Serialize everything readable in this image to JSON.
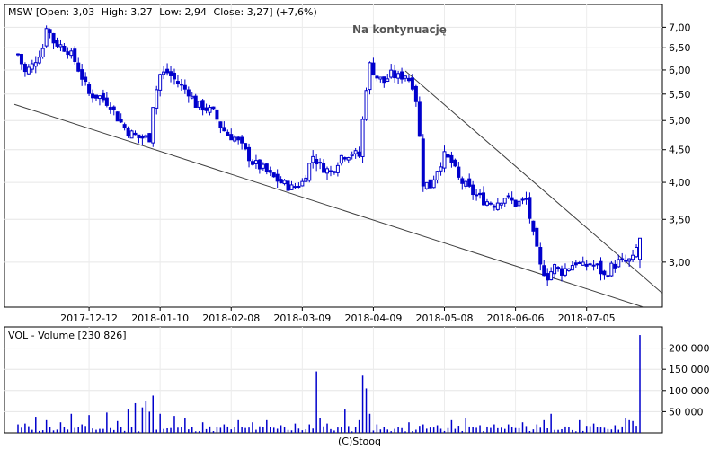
{
  "chart_data": [
    {
      "type": "candlestick",
      "ticker": "MSW",
      "header": {
        "open_label": "Open:",
        "open": "3,03",
        "high_label": "High:",
        "high": "3,27",
        "low_label": "Low:",
        "low": "2,94",
        "close_label": "Close:",
        "close": "3,27",
        "change": "(+7,6%)"
      },
      "annotation": "Na kontynuację",
      "y_scale": "log",
      "ylim": [
        2.55,
        7.6
      ],
      "y_ticks": [
        "7,00",
        "6,50",
        "6,00",
        "5,50",
        "5,00",
        "4,50",
        "4,00",
        "3,50",
        "3,00"
      ],
      "x_ticks": [
        "2017-12-12",
        "2018-01-10",
        "2018-02-08",
        "2018-03-09",
        "2018-04-09",
        "2018-05-08",
        "2018-06-06",
        "2018-07-05"
      ],
      "x_tick_sessions": [
        20,
        40,
        60,
        80,
        100,
        120,
        140,
        160
      ],
      "session_count": 176,
      "series_color": "#0000cc",
      "trendlines": [
        {
          "name": "support",
          "from": {
            "session": -1,
            "value": 5.3
          },
          "to": {
            "session": 176,
            "value": 2.55
          }
        },
        {
          "name": "resistance",
          "from": {
            "session": 109,
            "value": 5.98
          },
          "to": {
            "session": 182,
            "value": 2.66
          }
        }
      ],
      "price_anchors": [
        [
          0,
          6.35
        ],
        [
          2,
          5.95
        ],
        [
          4,
          6.1
        ],
        [
          7,
          6.5
        ],
        [
          8,
          7.05
        ],
        [
          10,
          6.65
        ],
        [
          12,
          6.55
        ],
        [
          14,
          6.45
        ],
        [
          16,
          6.2
        ],
        [
          18,
          5.85
        ],
        [
          20,
          5.5
        ],
        [
          23,
          5.45
        ],
        [
          26,
          5.3
        ],
        [
          28,
          5.05
        ],
        [
          31,
          4.8
        ],
        [
          34,
          4.7
        ],
        [
          37,
          4.7
        ],
        [
          38,
          5.3
        ],
        [
          40,
          5.9
        ],
        [
          42,
          5.95
        ],
        [
          44,
          5.8
        ],
        [
          46,
          5.65
        ],
        [
          48,
          5.55
        ],
        [
          50,
          5.3
        ],
        [
          52,
          5.25
        ],
        [
          55,
          5.15
        ],
        [
          57,
          4.9
        ],
        [
          59,
          4.75
        ],
        [
          61,
          4.7
        ],
        [
          63,
          4.55
        ],
        [
          66,
          4.3
        ],
        [
          69,
          4.2
        ],
        [
          71,
          4.1
        ],
        [
          74,
          4.0
        ],
        [
          77,
          3.92
        ],
        [
          80,
          4.0
        ],
        [
          83,
          4.4
        ],
        [
          85,
          4.25
        ],
        [
          88,
          4.15
        ],
        [
          91,
          4.4
        ],
        [
          94,
          4.45
        ],
        [
          96,
          4.4
        ],
        [
          97,
          5.0
        ],
        [
          98,
          5.65
        ],
        [
          99,
          6.1
        ],
        [
          101,
          5.85
        ],
        [
          103,
          5.75
        ],
        [
          105,
          5.9
        ],
        [
          107,
          5.85
        ],
        [
          109,
          5.9
        ],
        [
          111,
          5.7
        ],
        [
          112,
          5.4
        ],
        [
          113,
          4.7
        ],
        [
          114,
          4.0
        ],
        [
          116,
          3.95
        ],
        [
          118,
          4.2
        ],
        [
          120,
          4.4
        ],
        [
          122,
          4.3
        ],
        [
          124,
          4.05
        ],
        [
          126,
          3.95
        ],
        [
          128,
          3.85
        ],
        [
          131,
          3.75
        ],
        [
          134,
          3.7
        ],
        [
          137,
          3.8
        ],
        [
          140,
          3.7
        ],
        [
          143,
          3.75
        ],
        [
          145,
          3.3
        ],
        [
          147,
          2.95
        ],
        [
          149,
          2.85
        ],
        [
          151,
          2.95
        ],
        [
          153,
          2.9
        ],
        [
          155,
          2.95
        ],
        [
          157,
          3.0
        ],
        [
          159,
          2.95
        ],
        [
          161,
          2.98
        ],
        [
          163,
          2.95
        ],
        [
          165,
          2.85
        ],
        [
          167,
          2.95
        ],
        [
          169,
          3.0
        ],
        [
          171,
          3.0
        ],
        [
          173,
          3.03
        ],
        [
          175,
          3.27
        ]
      ]
    },
    {
      "type": "bar",
      "title": "VOL - Volume",
      "last_value": "[230 826]",
      "series_color": "#0000cc",
      "ylim": [
        0,
        250000
      ],
      "y_ticks": [
        {
          "value": 50000,
          "label": "50 000"
        },
        {
          "value": 100000,
          "label": "100 000"
        },
        {
          "value": 150000,
          "label": "150 000"
        },
        {
          "value": 200000,
          "label": "200 000"
        }
      ],
      "sessions": [
        0,
        2,
        5,
        8,
        12,
        15,
        18,
        20,
        25,
        28,
        31,
        33,
        35,
        36,
        37,
        38,
        40,
        44,
        47,
        52,
        58,
        62,
        66,
        70,
        74,
        78,
        82,
        84,
        85,
        87,
        92,
        96,
        97,
        98,
        99,
        101,
        110,
        114,
        118,
        122,
        126,
        130,
        134,
        138,
        142,
        146,
        148,
        150,
        154,
        158,
        162,
        165,
        168,
        170,
        171,
        172,
        173,
        175
      ],
      "values": [
        20000,
        22000,
        38000,
        30000,
        25000,
        45000,
        20000,
        42000,
        48000,
        28000,
        55000,
        70000,
        60000,
        75000,
        50000,
        88000,
        45000,
        40000,
        35000,
        25000,
        20000,
        30000,
        25000,
        30000,
        18000,
        22000,
        20000,
        145000,
        35000,
        22000,
        55000,
        30000,
        135000,
        105000,
        45000,
        20000,
        25000,
        20000,
        18000,
        30000,
        35000,
        18000,
        20000,
        20000,
        25000,
        20000,
        30000,
        45000,
        15000,
        30000,
        22000,
        12000,
        18000,
        15000,
        35000,
        30000,
        28000,
        230826
      ]
    }
  ],
  "footer": "(C)Stooq"
}
